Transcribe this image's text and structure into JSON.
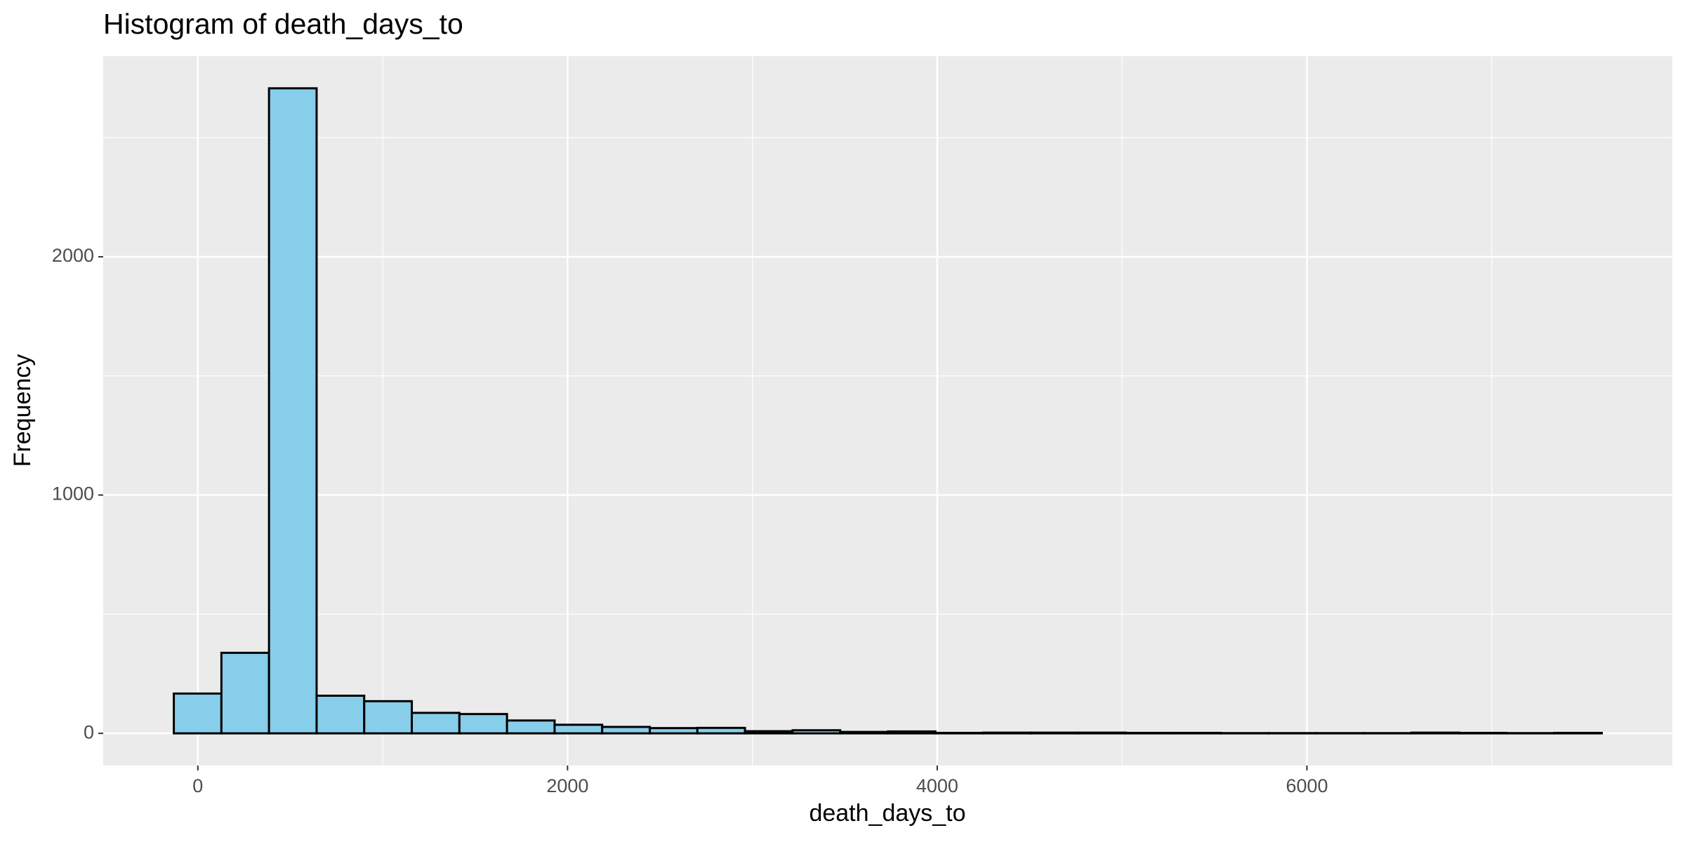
{
  "chart_data": {
    "type": "histogram",
    "title": "Histogram of death_days_to",
    "x_label": "death_days_to",
    "y_label": "Frequency",
    "bins": [
      -130,
      127.5,
      385,
      642.5,
      900,
      1157.5,
      1415,
      1672.5,
      1930,
      2187.5,
      2445,
      2702.5,
      2960,
      3217.5,
      3475,
      3732.5,
      3990,
      4247.5,
      4505,
      4762.5,
      5020,
      5277.5,
      5535,
      5792.5,
      6050,
      6307.5,
      6565,
      6822.5,
      7080,
      7337.5,
      7595
    ],
    "counts": [
      167,
      338,
      2707,
      158,
      135,
      86,
      81,
      54,
      36,
      27,
      22,
      23,
      9,
      13,
      6,
      8,
      2,
      3,
      3,
      3,
      2,
      2,
      1,
      1,
      1,
      1,
      3,
      2,
      1,
      2
    ],
    "color": "#87ceeb",
    "edge_color": "#000000",
    "xlim": [
      -512,
      7977
    ],
    "xticks": [
      0,
      2000,
      4000,
      6000
    ],
    "xminor": [
      1000,
      3000,
      5000,
      7000
    ],
    "ylim": [
      -135,
      2842
    ],
    "yticks": [
      0,
      1000,
      2000
    ],
    "yminor": [
      500,
      1500,
      2500
    ],
    "grid": true
  }
}
